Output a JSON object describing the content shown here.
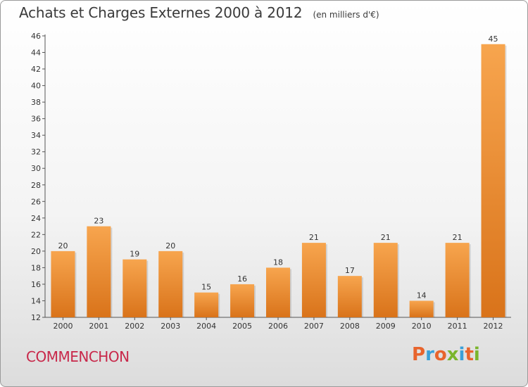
{
  "header": {
    "title": "Achats et Charges Externes 2000 à 2012",
    "subtitle": "(en milliers d'€)"
  },
  "footer": {
    "commune": "COMMENCHON",
    "logo_text": "Proxiti"
  },
  "colors": {
    "bar_light": "#f7a54e",
    "bar_dark": "#d9731a",
    "commune": "#c8284a",
    "logo_letters": [
      "#e8642c",
      "#3aa0d8",
      "#e8642c",
      "#7ab52c",
      "#3aa0d8",
      "#e8642c",
      "#7ab52c"
    ]
  },
  "chart_data": {
    "type": "bar",
    "title": "Achats et Charges Externes 2000 à 2012",
    "subtitle": "(en milliers d'€)",
    "categories": [
      "2000",
      "2001",
      "2002",
      "2003",
      "2004",
      "2005",
      "2006",
      "2007",
      "2008",
      "2009",
      "2010",
      "2011",
      "2012"
    ],
    "values": [
      20,
      23,
      19,
      20,
      15,
      16,
      18,
      21,
      17,
      21,
      14,
      21,
      45
    ],
    "ylim": [
      12,
      46
    ],
    "yticks": [
      12,
      14,
      16,
      18,
      20,
      22,
      24,
      26,
      28,
      30,
      32,
      34,
      36,
      38,
      40,
      42,
      44,
      46
    ],
    "grid": false,
    "legend": "none",
    "data_labels": true
  }
}
